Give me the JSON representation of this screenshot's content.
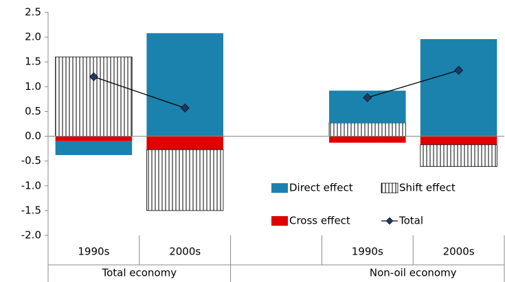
{
  "chart_data": {
    "type": "stacked_bar_line",
    "categories": [
      "1990s",
      "2000s",
      null,
      "1990s",
      "2000s"
    ],
    "groups": [
      "Total economy",
      "Non-oil economy"
    ],
    "series": [
      {
        "name": "Direct effect",
        "type": "bar",
        "color": "#1b82ad",
        "values": [
          -0.28,
          2.08,
          null,
          0.65,
          1.96
        ]
      },
      {
        "name": "Shift effect",
        "type": "bar",
        "pattern": "vertical-stripes",
        "color": "#000000",
        "values": [
          1.6,
          -1.23,
          null,
          0.27,
          -0.44
        ]
      },
      {
        "name": "Cross effect",
        "type": "bar",
        "color": "#e00000",
        "values": [
          -0.1,
          -0.27,
          null,
          -0.13,
          -0.17
        ]
      },
      {
        "name": "Total",
        "type": "line",
        "color": "#000000",
        "marker_color": "#1f3864",
        "values": [
          1.2,
          0.57,
          null,
          0.78,
          1.33
        ]
      }
    ],
    "ylim": [
      -2.0,
      2.5
    ],
    "yticks": [
      2.5,
      {
        "value": 2.0,
        "label": "2.0"
      },
      1.5,
      {
        "value": 1.0,
        "label": "1.0"
      },
      0.5,
      {
        "value": 0.0,
        "label": "0.0"
      },
      -0.5,
      {
        "value": -1.0,
        "label": "-1.0"
      },
      -1.5,
      {
        "value": -2.0,
        "label": "-2.0"
      }
    ],
    "legend": "bottom-right"
  }
}
